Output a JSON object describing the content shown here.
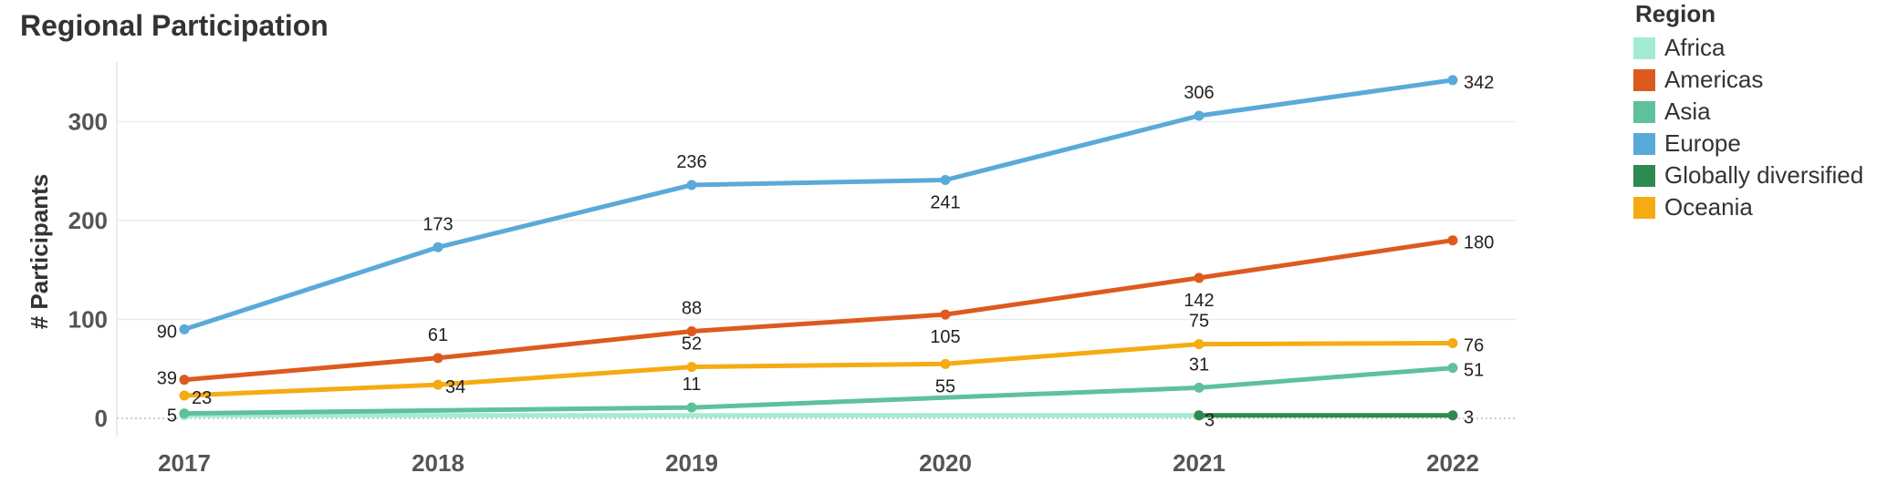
{
  "chart_data": {
    "type": "line",
    "title": "Regional Participation",
    "ylabel": "# Participants",
    "xlabel": "",
    "x": [
      "2017",
      "2018",
      "2019",
      "2020",
      "2021",
      "2022"
    ],
    "ylim": [
      0,
      350
    ],
    "yticks": [
      0,
      100,
      200,
      300
    ],
    "grid": true,
    "legend": {
      "title": "Region",
      "position": "right"
    },
    "series": [
      {
        "name": "Europe",
        "color": "#5aaad9",
        "values": [
          90,
          173,
          236,
          241,
          306,
          342
        ],
        "labels": [
          "90",
          "173",
          "236",
          "241",
          "306",
          "342"
        ]
      },
      {
        "name": "Americas",
        "color": "#dd5a1e",
        "values": [
          39,
          61,
          88,
          105,
          142,
          180
        ],
        "labels": [
          "39",
          "61",
          "88",
          "105",
          "142",
          "180"
        ]
      },
      {
        "name": "Oceania",
        "color": "#f5ab12",
        "values": [
          23,
          34,
          52,
          55,
          75,
          76
        ],
        "labels": [
          "23",
          "34",
          "52",
          "55",
          "75",
          "76"
        ]
      },
      {
        "name": "Asia",
        "color": "#5ec19b",
        "values": [
          5,
          null,
          11,
          null,
          31,
          51
        ],
        "labels": [
          "5",
          "",
          "11",
          "",
          "31",
          "51"
        ]
      },
      {
        "name": "Africa",
        "color": "#a3ecd1",
        "values": [
          3,
          null,
          null,
          null,
          3,
          null
        ],
        "labels": [
          "",
          "",
          "",
          "",
          "3",
          ""
        ]
      },
      {
        "name": "Globally diversified",
        "color": "#2e8a4f",
        "values": [
          null,
          null,
          null,
          null,
          3,
          3
        ],
        "labels": [
          "",
          "",
          "",
          "",
          "",
          "3"
        ]
      }
    ],
    "legend_order": [
      "Africa",
      "Americas",
      "Asia",
      "Europe",
      "Globally diversified",
      "Oceania"
    ]
  }
}
